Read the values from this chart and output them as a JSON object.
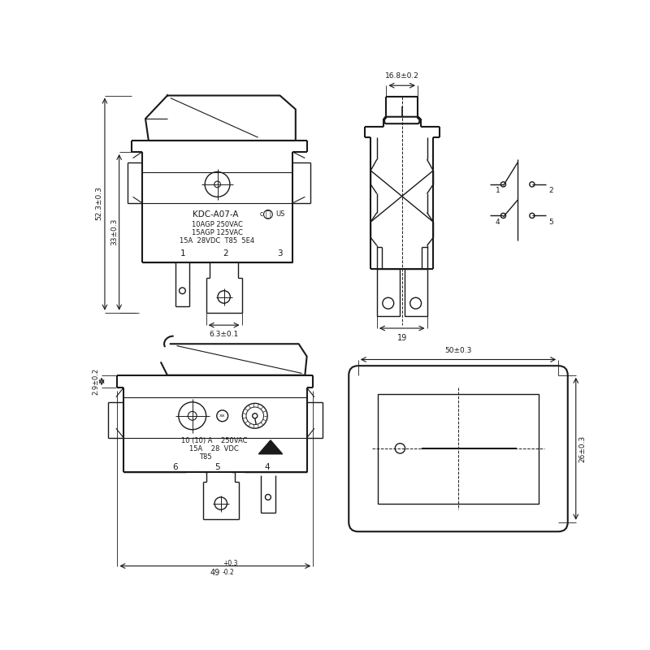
{
  "bg_color": "#ffffff",
  "line_color": "#1a1a1a",
  "views": {
    "front": {
      "label_52": "52.3±0.3",
      "label_33": "33±0.3",
      "label_63": "6.3±0.1",
      "model": "KDC-A07-A",
      "rating1": "10AGP 250VAC",
      "rating2": "15AGP 125VAC",
      "rating3": "15A  28VDC  T85  5E4",
      "pins": [
        "1",
        "2",
        "3"
      ]
    },
    "side": {
      "label_168": "16.8±0.2",
      "label_19": "19"
    },
    "bottom": {
      "label_29": "2.9±0.2",
      "label_49": "49",
      "label_49sup": "+0.3",
      "label_49sub": "-0.2",
      "rating1": "10 (10) A    250VAC",
      "rating2": "15A    28  VDC",
      "rating3": "T85",
      "pins": [
        "6",
        "5",
        "4"
      ]
    },
    "panel": {
      "label_50": "50±0.3",
      "label_26": "26±0.3"
    }
  }
}
